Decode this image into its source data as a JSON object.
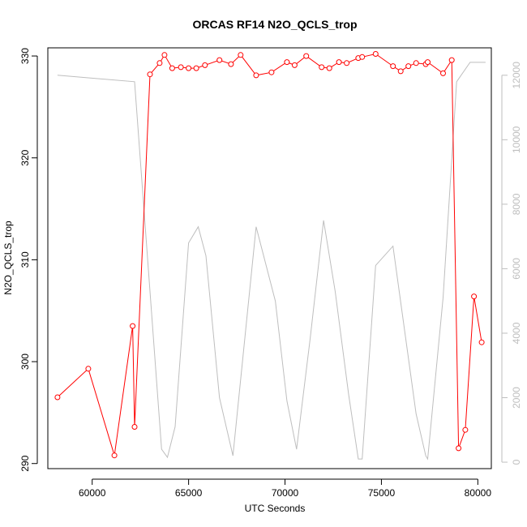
{
  "chart_data": {
    "type": "line",
    "title": "ORCAS RF14 N2O_QCLS_trop",
    "xlabel": "UTC Seconds",
    "ylabel": "N2O_QCLS_trop",
    "xlim": [
      57700,
      80700
    ],
    "ylim": [
      289.5,
      330.8
    ],
    "y2lim": [
      -200,
      12850
    ],
    "x_ticks": [
      60000,
      65000,
      70000,
      75000,
      80000
    ],
    "y_ticks": [
      290,
      300,
      310,
      320,
      330
    ],
    "y2_ticks": [
      0,
      2000,
      4000,
      6000,
      8000,
      10000,
      12000
    ],
    "colors": {
      "primary": "#ff0000",
      "secondary": "#bebebe",
      "axis": "#000000"
    },
    "series": [
      {
        "role": "primary",
        "axis": "left",
        "style": "line+circle-markers",
        "points": [
          [
            58200,
            296.5
          ],
          [
            59800,
            299.3
          ],
          [
            61150,
            290.8
          ],
          [
            62100,
            303.5
          ],
          [
            62200,
            293.6
          ],
          [
            63000,
            328.2
          ],
          [
            63500,
            329.3
          ],
          [
            63750,
            330.1
          ],
          [
            64150,
            328.8
          ],
          [
            64600,
            328.9
          ],
          [
            65000,
            328.8
          ],
          [
            65400,
            328.8
          ],
          [
            65850,
            329.1
          ],
          [
            66600,
            329.6
          ],
          [
            67200,
            329.2
          ],
          [
            67700,
            330.1
          ],
          [
            68500,
            328.1
          ],
          [
            69300,
            328.4
          ],
          [
            70100,
            329.4
          ],
          [
            70500,
            329.1
          ],
          [
            71100,
            330.0
          ],
          [
            71900,
            328.9
          ],
          [
            72300,
            328.8
          ],
          [
            72800,
            329.4
          ],
          [
            73200,
            329.3
          ],
          [
            73800,
            329.8
          ],
          [
            74000,
            329.9
          ],
          [
            74700,
            330.2
          ],
          [
            75600,
            329.0
          ],
          [
            76000,
            328.5
          ],
          [
            76400,
            329.0
          ],
          [
            76800,
            329.3
          ],
          [
            77300,
            329.2
          ],
          [
            77400,
            329.4
          ],
          [
            78200,
            328.3
          ],
          [
            78650,
            329.6
          ],
          [
            79000,
            291.5
          ],
          [
            79350,
            293.3
          ],
          [
            79800,
            306.4
          ],
          [
            80200,
            301.9
          ]
        ]
      },
      {
        "role": "secondary",
        "axis": "right",
        "style": "line",
        "points": [
          [
            58200,
            12000
          ],
          [
            62200,
            11800
          ],
          [
            63600,
            400
          ],
          [
            63900,
            150
          ],
          [
            64300,
            1100
          ],
          [
            65000,
            6800
          ],
          [
            65500,
            7300
          ],
          [
            65900,
            6400
          ],
          [
            66600,
            2000
          ],
          [
            67300,
            200
          ],
          [
            68500,
            7300
          ],
          [
            69500,
            5000
          ],
          [
            70100,
            1900
          ],
          [
            70600,
            400
          ],
          [
            71300,
            3800
          ],
          [
            72000,
            7500
          ],
          [
            72600,
            5300
          ],
          [
            73300,
            2100
          ],
          [
            73800,
            100
          ],
          [
            74000,
            100
          ],
          [
            74700,
            6100
          ],
          [
            75600,
            6700
          ],
          [
            76800,
            1500
          ],
          [
            77300,
            200
          ],
          [
            77400,
            100
          ],
          [
            78200,
            5100
          ],
          [
            78900,
            11800
          ],
          [
            79600,
            12400
          ],
          [
            80400,
            12400
          ]
        ]
      }
    ]
  }
}
